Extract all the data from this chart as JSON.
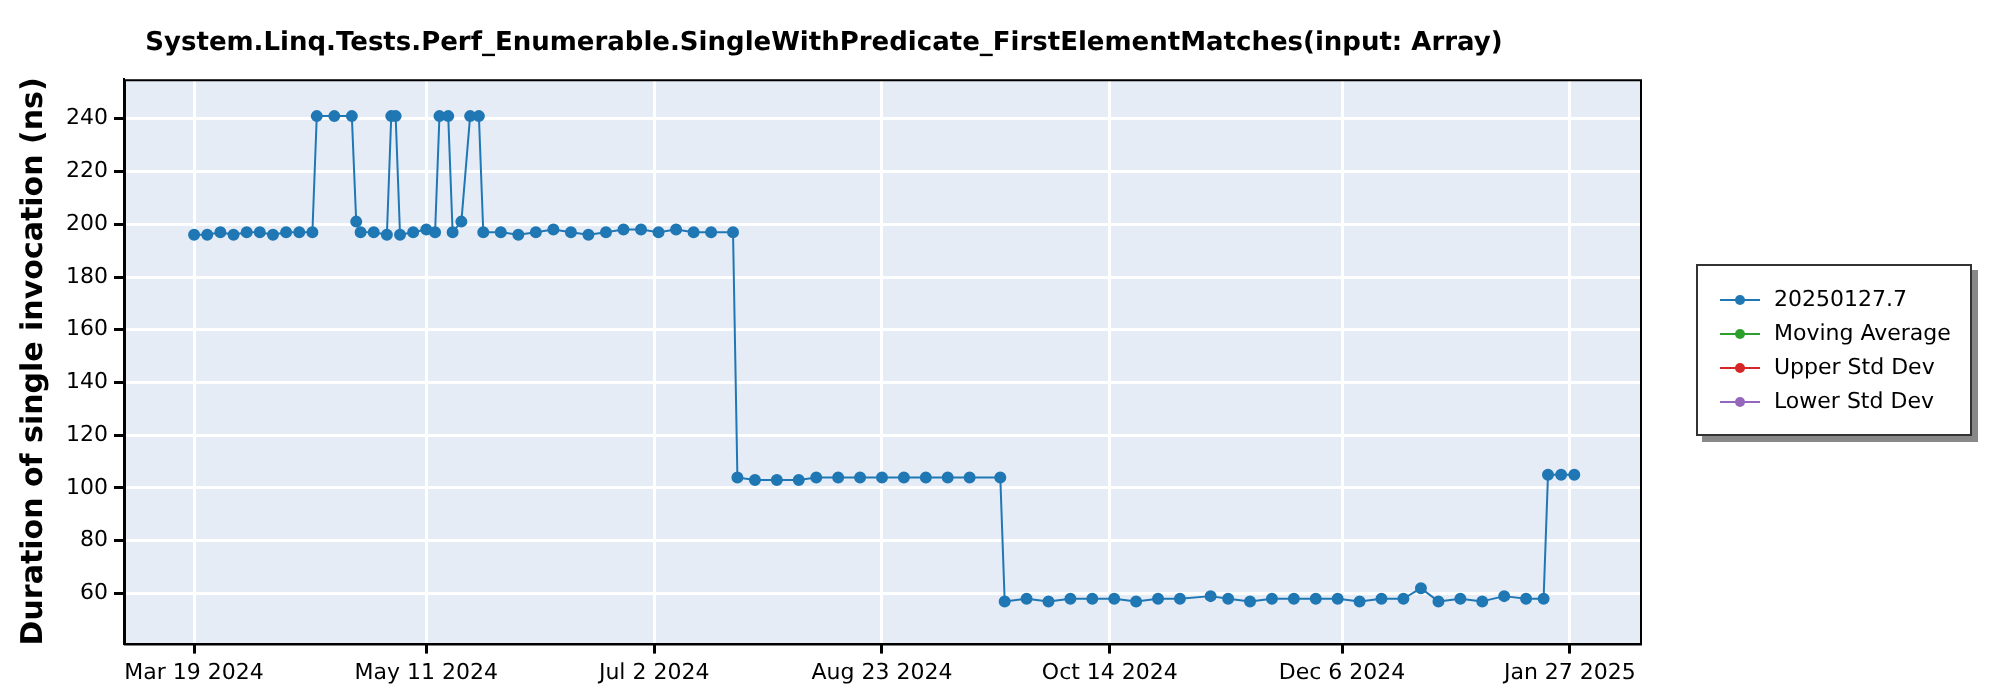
{
  "chart_data": {
    "type": "line",
    "title": "System.Linq.Tests.Perf_Enumerable.SingleWithPredicate_FirstElementMatches(input: Array)",
    "ylabel": "Duration of single invocation (ns)",
    "xlim": [
      "2024-03-03",
      "2025-02-12"
    ],
    "xticks": [
      {
        "value": "2024-03-19",
        "label": "Mar 19 2024"
      },
      {
        "value": "2024-05-11",
        "label": "May 11 2024"
      },
      {
        "value": "2024-07-02",
        "label": "Jul 2 2024"
      },
      {
        "value": "2024-08-23",
        "label": "Aug 23 2024"
      },
      {
        "value": "2024-10-14",
        "label": "Oct 14 2024"
      },
      {
        "value": "2024-12-06",
        "label": "Dec 6 2024"
      },
      {
        "value": "2025-01-27",
        "label": "Jan 27 2025"
      }
    ],
    "ylim": [
      41,
      255
    ],
    "yticks": [
      60,
      80,
      100,
      120,
      140,
      160,
      180,
      200,
      220,
      240
    ],
    "grid": true,
    "legend": "right",
    "marker": "circle",
    "line_style": "solid",
    "series": [
      {
        "name": "20250127.7",
        "color": "#1f77b4",
        "x": [
          "2024-03-19",
          "2024-03-22",
          "2024-03-25",
          "2024-03-28",
          "2024-03-31",
          "2024-04-03",
          "2024-04-06",
          "2024-04-09",
          "2024-04-12",
          "2024-04-15",
          "2024-04-16",
          "2024-04-20",
          "2024-04-24",
          "2024-04-25",
          "2024-04-26",
          "2024-04-29",
          "2024-05-02",
          "2024-05-03",
          "2024-05-04",
          "2024-05-05",
          "2024-05-08",
          "2024-05-11",
          "2024-05-13",
          "2024-05-14",
          "2024-05-16",
          "2024-05-17",
          "2024-05-19",
          "2024-05-21",
          "2024-05-23",
          "2024-05-24",
          "2024-05-28",
          "2024-06-01",
          "2024-06-05",
          "2024-06-09",
          "2024-06-13",
          "2024-06-17",
          "2024-06-21",
          "2024-06-25",
          "2024-06-29",
          "2024-07-03",
          "2024-07-07",
          "2024-07-11",
          "2024-07-15",
          "2024-07-20",
          "2024-07-21",
          "2024-07-25",
          "2024-07-30",
          "2024-08-04",
          "2024-08-08",
          "2024-08-13",
          "2024-08-18",
          "2024-08-23",
          "2024-08-28",
          "2024-09-02",
          "2024-09-07",
          "2024-09-12",
          "2024-09-19",
          "2024-09-20",
          "2024-09-25",
          "2024-09-30",
          "2024-10-05",
          "2024-10-10",
          "2024-10-15",
          "2024-10-20",
          "2024-10-25",
          "2024-10-30",
          "2024-11-06",
          "2024-11-10",
          "2024-11-15",
          "2024-11-20",
          "2024-11-25",
          "2024-11-30",
          "2024-12-05",
          "2024-12-10",
          "2024-12-15",
          "2024-12-20",
          "2024-12-24",
          "2024-12-28",
          "2025-01-02",
          "2025-01-07",
          "2025-01-12",
          "2025-01-17",
          "2025-01-21",
          "2025-01-22",
          "2025-01-25",
          "2025-01-28"
        ],
        "values": [
          196,
          196,
          197,
          196,
          197,
          197,
          196,
          197,
          197,
          197,
          241,
          241,
          241,
          201,
          197,
          197,
          196,
          241,
          241,
          196,
          197,
          198,
          197,
          241,
          241,
          197,
          201,
          241,
          241,
          197,
          197,
          196,
          197,
          198,
          197,
          196,
          197,
          198,
          198,
          197,
          198,
          197,
          197,
          197,
          104,
          103,
          103,
          103,
          104,
          104,
          104,
          104,
          104,
          104,
          104,
          104,
          104,
          57,
          58,
          57,
          58,
          58,
          58,
          57,
          58,
          58,
          59,
          58,
          57,
          58,
          58,
          58,
          58,
          57,
          58,
          58,
          62,
          57,
          58,
          57,
          59,
          58,
          58,
          105,
          105,
          105
        ]
      },
      {
        "name": "Moving Average",
        "color": "#2ca02c"
      },
      {
        "name": "Upper Std Dev",
        "color": "#d62728"
      },
      {
        "name": "Lower Std Dev",
        "color": "#9467bd"
      }
    ]
  }
}
